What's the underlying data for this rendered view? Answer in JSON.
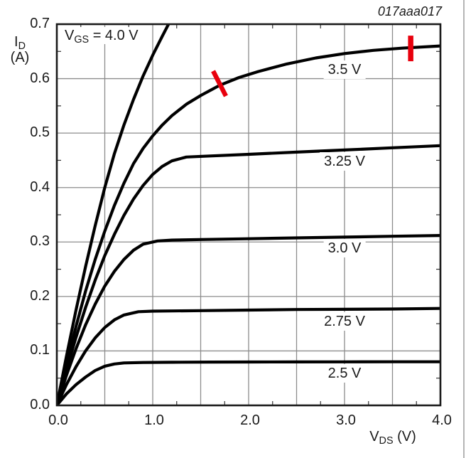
{
  "figure_id": "017aaa017",
  "colors": {
    "curve": "#000000",
    "grid": "#8c8c8c",
    "minor_tick": "#333333",
    "border": "#1a1a1a",
    "text": "#1a1a1a",
    "annotation_red": "#e8000d",
    "page_edge": "#b5b5b5"
  },
  "axes": {
    "x": {
      "sym": "V",
      "sub": "DS",
      "unit": "(V)",
      "min": 0,
      "max": 4,
      "grid_step": 0.5,
      "minor_step": 0.25,
      "tick_step": 1.0,
      "tick_labels": [
        "0.0",
        "1.0",
        "2.0",
        "3.0",
        "4.0"
      ]
    },
    "y": {
      "sym": "I",
      "sub": "D",
      "unit": "(A)",
      "min": 0,
      "max": 0.7,
      "grid_step": 0.1,
      "minor_step": 0.05,
      "tick_step": 0.1,
      "tick_labels": [
        "0.7",
        "0.6",
        "0.5",
        "0.4",
        "0.3",
        "0.2",
        "0.1",
        "0.0"
      ]
    }
  },
  "inplot_label": {
    "sym": "V",
    "sub": "GS",
    "rest": " = 4.0 V"
  },
  "chart_data": {
    "type": "line",
    "xlabel": "VDS (V)",
    "ylabel": "ID (A)",
    "xlim": [
      0,
      4
    ],
    "ylim": [
      0,
      0.7
    ],
    "grid": "on",
    "series": [
      {
        "name": "VGS = 4.0 V",
        "label": null,
        "label_pos": null,
        "points": [
          [
            0,
            0
          ],
          [
            0.1,
            0.09
          ],
          [
            0.2,
            0.175
          ],
          [
            0.3,
            0.255
          ],
          [
            0.4,
            0.33
          ],
          [
            0.5,
            0.4
          ],
          [
            0.6,
            0.462
          ],
          [
            0.7,
            0.515
          ],
          [
            0.8,
            0.562
          ],
          [
            0.9,
            0.605
          ],
          [
            1.0,
            0.643
          ],
          [
            1.1,
            0.678
          ],
          [
            1.2,
            0.712
          ]
        ]
      },
      {
        "name": "VGS = 3.5 V",
        "label": "3.5 V",
        "label_pos": [
          3.0,
          0.617
        ],
        "points": [
          [
            0,
            0
          ],
          [
            0.1,
            0.075
          ],
          [
            0.2,
            0.145
          ],
          [
            0.3,
            0.21
          ],
          [
            0.4,
            0.268
          ],
          [
            0.5,
            0.32
          ],
          [
            0.6,
            0.367
          ],
          [
            0.7,
            0.408
          ],
          [
            0.8,
            0.444
          ],
          [
            0.9,
            0.472
          ],
          [
            1.0,
            0.495
          ],
          [
            1.1,
            0.515
          ],
          [
            1.2,
            0.532
          ],
          [
            1.35,
            0.553
          ],
          [
            1.5,
            0.569
          ],
          [
            1.7,
            0.588
          ],
          [
            1.9,
            0.602
          ],
          [
            2.1,
            0.613
          ],
          [
            2.4,
            0.627
          ],
          [
            2.7,
            0.638
          ],
          [
            3.0,
            0.646
          ],
          [
            3.3,
            0.652
          ],
          [
            3.6,
            0.656
          ],
          [
            4.0,
            0.66
          ]
        ]
      },
      {
        "name": "VGS = 3.25 V",
        "label": "3.25 V",
        "label_pos": [
          3.0,
          0.448
        ],
        "points": [
          [
            0,
            0
          ],
          [
            0.1,
            0.065
          ],
          [
            0.2,
            0.125
          ],
          [
            0.3,
            0.18
          ],
          [
            0.4,
            0.23
          ],
          [
            0.5,
            0.275
          ],
          [
            0.6,
            0.314
          ],
          [
            0.7,
            0.349
          ],
          [
            0.8,
            0.379
          ],
          [
            0.9,
            0.404
          ],
          [
            1.0,
            0.424
          ],
          [
            1.1,
            0.439
          ],
          [
            1.2,
            0.449
          ],
          [
            1.35,
            0.456
          ],
          [
            1.6,
            0.458
          ],
          [
            2.0,
            0.461
          ],
          [
            2.5,
            0.465
          ],
          [
            3.0,
            0.469
          ],
          [
            3.5,
            0.473
          ],
          [
            4.0,
            0.477
          ]
        ]
      },
      {
        "name": "VGS = 3.0 V",
        "label": "3.0 V",
        "label_pos": [
          3.0,
          0.289
        ],
        "points": [
          [
            0,
            0
          ],
          [
            0.1,
            0.055
          ],
          [
            0.2,
            0.104
          ],
          [
            0.3,
            0.148
          ],
          [
            0.4,
            0.186
          ],
          [
            0.5,
            0.219
          ],
          [
            0.6,
            0.246
          ],
          [
            0.7,
            0.268
          ],
          [
            0.8,
            0.285
          ],
          [
            0.9,
            0.296
          ],
          [
            1.05,
            0.302
          ],
          [
            1.2,
            0.3035
          ],
          [
            1.5,
            0.3045
          ],
          [
            2.0,
            0.306
          ],
          [
            2.5,
            0.3075
          ],
          [
            3.0,
            0.309
          ],
          [
            3.5,
            0.3105
          ],
          [
            4.0,
            0.312
          ]
        ]
      },
      {
        "name": "VGS = 2.75 V",
        "label": "2.75 V",
        "label_pos": [
          3.0,
          0.154
        ],
        "points": [
          [
            0,
            0
          ],
          [
            0.1,
            0.038
          ],
          [
            0.2,
            0.071
          ],
          [
            0.3,
            0.1
          ],
          [
            0.4,
            0.124
          ],
          [
            0.5,
            0.143
          ],
          [
            0.6,
            0.157
          ],
          [
            0.7,
            0.166
          ],
          [
            0.85,
            0.172
          ],
          [
            1.0,
            0.173
          ],
          [
            1.5,
            0.174
          ],
          [
            2.0,
            0.175
          ],
          [
            2.5,
            0.176
          ],
          [
            3.0,
            0.1765
          ],
          [
            3.5,
            0.177
          ],
          [
            4.0,
            0.178
          ]
        ]
      },
      {
        "name": "VGS = 2.5 V",
        "label": "2.5 V",
        "label_pos": [
          3.0,
          0.059
        ],
        "points": [
          [
            0,
            0
          ],
          [
            0.1,
            0.021
          ],
          [
            0.2,
            0.038
          ],
          [
            0.3,
            0.052
          ],
          [
            0.4,
            0.064
          ],
          [
            0.5,
            0.072
          ],
          [
            0.6,
            0.076
          ],
          [
            0.7,
            0.078
          ],
          [
            0.9,
            0.0787
          ],
          [
            1.2,
            0.0792
          ],
          [
            1.6,
            0.0795
          ],
          [
            2.0,
            0.0797
          ],
          [
            2.5,
            0.0798
          ],
          [
            3.0,
            0.0799
          ],
          [
            3.5,
            0.08
          ],
          [
            4.0,
            0.08
          ]
        ]
      }
    ]
  },
  "annotations": [
    {
      "name": "red-mark-slanted",
      "from": [
        1.63,
        0.614
      ],
      "to": [
        1.763,
        0.568
      ],
      "width": 6.5
    },
    {
      "name": "red-mark-vertical",
      "from": [
        3.69,
        0.679
      ],
      "to": [
        3.69,
        0.632
      ],
      "width": 7.5
    }
  ]
}
